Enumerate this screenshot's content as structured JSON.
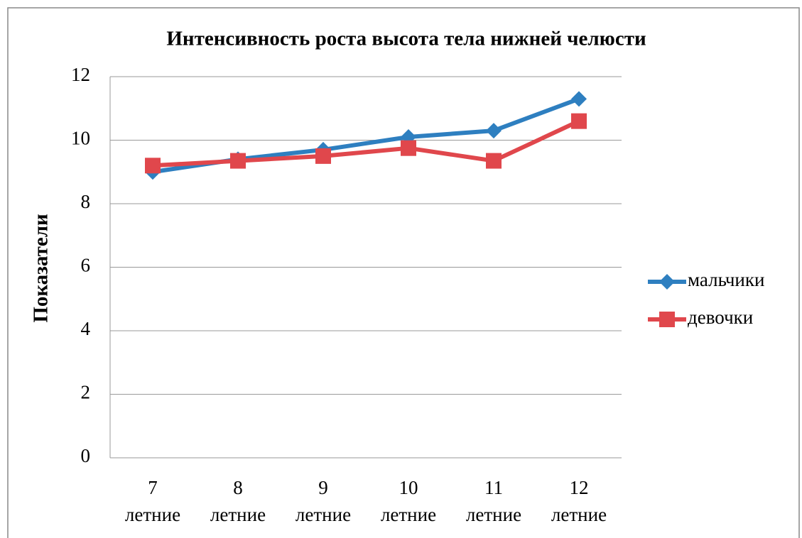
{
  "chart_data": {
    "type": "line",
    "title": "Интенсивность роста высота тела нижней челюсти",
    "y_label": "Показатели",
    "categories": [
      "7 летние",
      "8 летние",
      "9 летние",
      "10 летние",
      "11 летние",
      "12 летние"
    ],
    "series": [
      {
        "name": "мальчики",
        "color": "#2e7fc0",
        "marker": "diamond",
        "values": [
          9.0,
          9.4,
          9.7,
          10.1,
          10.3,
          11.3
        ]
      },
      {
        "name": "девочки",
        "color": "#e0474c",
        "marker": "square",
        "values": [
          9.2,
          9.35,
          9.5,
          9.75,
          9.35,
          10.6
        ]
      }
    ],
    "ylim": [
      0,
      12
    ],
    "yticks": [
      0,
      2,
      4,
      6,
      8,
      10,
      12
    ],
    "grid": true,
    "legend": "right"
  }
}
